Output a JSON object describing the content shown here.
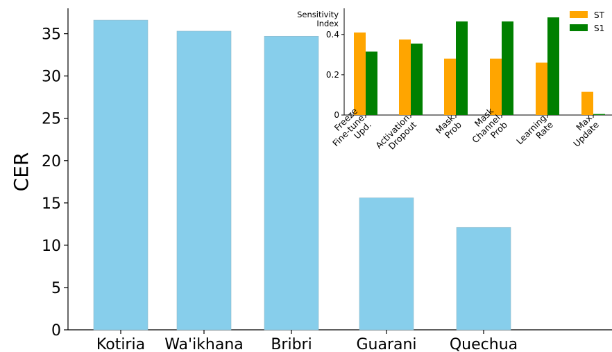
{
  "chart_data": [
    {
      "type": "bar",
      "title": "",
      "xlabel": "",
      "ylabel": "CER",
      "ylim": [
        0,
        38
      ],
      "yticks": [
        0,
        5,
        10,
        15,
        20,
        25,
        30,
        35
      ],
      "categories": [
        "Kotiria",
        "Wa'ikhana",
        "Bribri",
        "Guarani",
        "Quechua"
      ],
      "values": [
        36.6,
        35.3,
        34.7,
        15.6,
        12.1
      ],
      "colors": {
        "bar": "#87ceeb"
      },
      "grid": false
    },
    {
      "type": "bar",
      "title": "Sensitivity Index",
      "title_lines": [
        "Sensitivity",
        "Index"
      ],
      "xlabel": "",
      "ylabel": "",
      "ylim": [
        0,
        0.53
      ],
      "yticks": [
        "0",
        "0.2",
        "0.4"
      ],
      "categories": [
        [
          "Freeze",
          "Fine-tune",
          "Upd."
        ],
        [
          "Activation",
          "Dropout"
        ],
        [
          "Mask",
          "Prob"
        ],
        [
          "Mask",
          "Channel",
          "Prob"
        ],
        [
          "Learning",
          "Rate"
        ],
        [
          "Max",
          "Update"
        ]
      ],
      "series": [
        {
          "name": "ST",
          "color": "#ffa500",
          "values": [
            0.41,
            0.375,
            0.28,
            0.28,
            0.26,
            0.115
          ]
        },
        {
          "name": "S1",
          "color": "#008000",
          "values": [
            0.315,
            0.355,
            0.465,
            0.465,
            0.485,
            0.005
          ]
        }
      ],
      "legend": "top-right",
      "grid": false
    }
  ]
}
